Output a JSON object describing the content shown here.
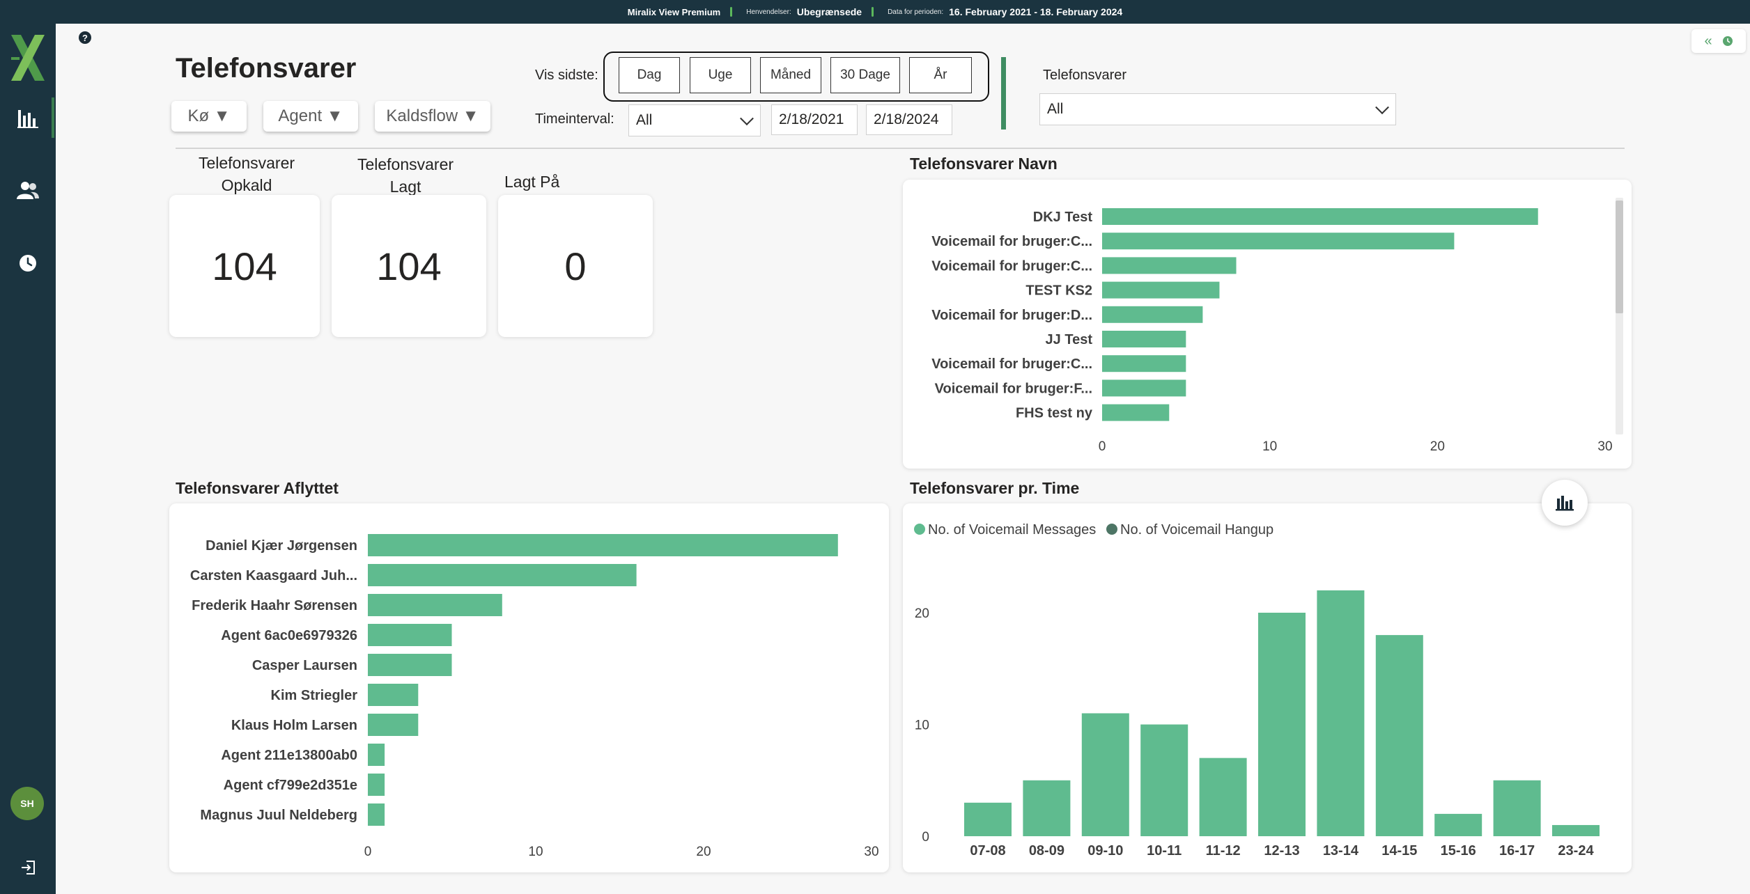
{
  "topbar": {
    "product": "Miralix View Premium",
    "inquiries_label": "Henvendelser:",
    "inquiries_value": "Ubegrænsede",
    "period_label": "Data for perioden:",
    "period_value": "16. February 2021 - 18. February 2024"
  },
  "sidebar": {
    "items": [
      {
        "icon": "bar-chart-icon"
      },
      {
        "icon": "users-icon"
      },
      {
        "icon": "clock-icon"
      }
    ],
    "avatar": "SH",
    "logout_icon": "logout-icon"
  },
  "header": {
    "title": "Telefonsvarer",
    "help_icon": "?",
    "filters": [
      "Kø ▼",
      "Agent ▼",
      "Kaldsflow ▼"
    ]
  },
  "time": {
    "vis_label": "Vis sidste:",
    "ranges": [
      "Dag",
      "Uge",
      "Måned",
      "30 Dage",
      "År"
    ],
    "interval_label": "Timeinterval:",
    "interval_value": "All",
    "date_from": "2/18/2021",
    "date_to": "2/18/2024"
  },
  "slicer": {
    "label": "Telefonsvarer",
    "value": "All"
  },
  "kpis": [
    {
      "title_line1": "Telefonsvarer",
      "title_line2": "Opkald",
      "value": "104"
    },
    {
      "title_line1": "Telefonsvarer",
      "title_line2": "Lagt",
      "value": "104"
    },
    {
      "title_line1": "Lagt På",
      "title_line2": "",
      "value": "0"
    }
  ],
  "colors": {
    "bar": "#5fbb8f",
    "bar_dark": "#4d7565",
    "sidebar": "#1b3440",
    "accent": "#3f8d62"
  },
  "chart_data": [
    {
      "type": "bar",
      "orientation": "horizontal",
      "title": "Telefonsvarer Navn",
      "categories": [
        "DKJ Test",
        "Voicemail for bruger:C...",
        "Voicemail for bruger:C...",
        "TEST KS2",
        "Voicemail for bruger:D...",
        "JJ Test",
        "Voicemail for bruger:C...",
        "Voicemail for bruger:F...",
        "FHS test ny"
      ],
      "values": [
        26,
        21,
        8,
        7,
        6,
        5,
        5,
        5,
        4
      ],
      "xlim": [
        0,
        30
      ],
      "xticks": [
        0,
        10,
        20,
        30
      ]
    },
    {
      "type": "bar",
      "orientation": "horizontal",
      "title": "Telefonsvarer Aflyttet",
      "categories": [
        "Daniel Kjær Jørgensen",
        "Carsten Kaasgaard Juh...",
        "Frederik Haahr Sørensen",
        "Agent 6ac0e6979326",
        "Casper Laursen",
        "Kim Striegler",
        "Klaus Holm Larsen",
        "Agent 211e13800ab0",
        "Agent cf799e2d351e",
        "Magnus Juul Neldeberg"
      ],
      "values": [
        28,
        16,
        8,
        5,
        5,
        3,
        3,
        1,
        1,
        1
      ],
      "xlim": [
        0,
        30
      ],
      "xticks": [
        0,
        10,
        20,
        30
      ]
    },
    {
      "type": "bar",
      "orientation": "vertical",
      "title": "Telefonsvarer pr. Time",
      "categories": [
        "07-08",
        "08-09",
        "09-10",
        "10-11",
        "11-12",
        "12-13",
        "13-14",
        "14-15",
        "15-16",
        "16-17",
        "23-24"
      ],
      "series": [
        {
          "name": "No. of Voicemail Messages",
          "values": [
            3,
            5,
            11,
            10,
            7,
            20,
            22,
            18,
            2,
            5,
            1
          ]
        },
        {
          "name": "No. of Voicemail Hangup",
          "values": [
            0,
            0,
            0,
            0,
            0,
            0,
            0,
            0,
            0,
            0,
            0
          ]
        }
      ],
      "ylim": [
        0,
        22
      ],
      "yticks": [
        0,
        10,
        20
      ],
      "legend": "top-left"
    }
  ]
}
